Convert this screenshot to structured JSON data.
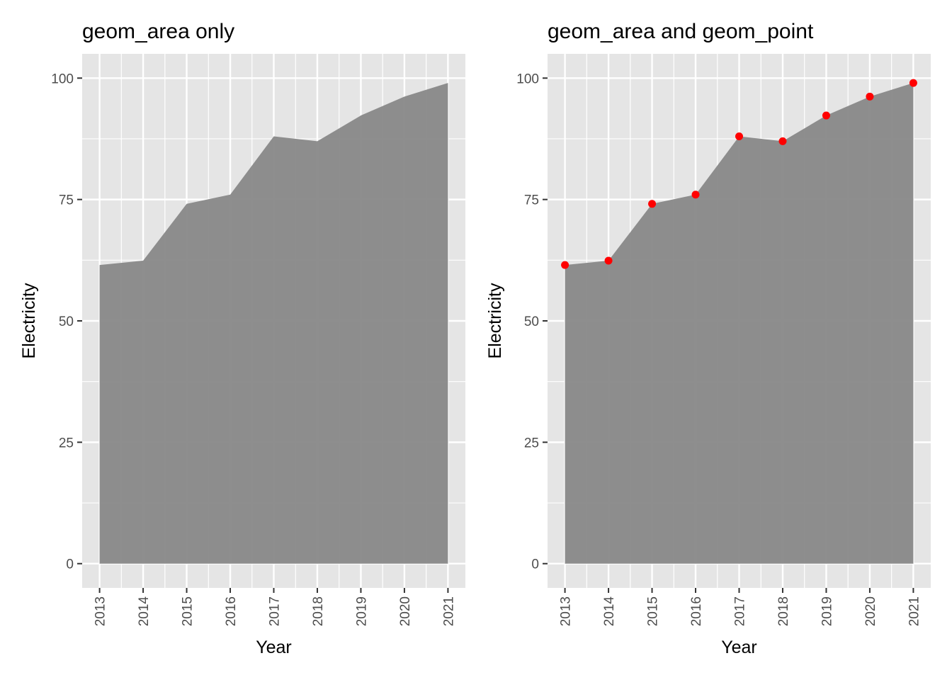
{
  "chart_data": [
    {
      "type": "area",
      "title": "geom_area only",
      "xlabel": "Year",
      "ylabel": "Electricity",
      "x": [
        2013,
        2014,
        2015,
        2016,
        2017,
        2018,
        2019,
        2020,
        2021
      ],
      "series": [
        {
          "values": [
            61.5,
            62.4,
            74.1,
            76.0,
            88.0,
            87.0,
            92.3,
            96.2,
            99.0
          ]
        }
      ],
      "ylim": [
        0,
        100
      ],
      "yticks": [
        0,
        25,
        50,
        75,
        100
      ],
      "grid": true,
      "points": false,
      "colors": {
        "panel": "#e5e5e5",
        "area": "#888888",
        "grid": "#ffffff"
      }
    },
    {
      "type": "area",
      "title": "geom_area and geom_point",
      "xlabel": "Year",
      "ylabel": "Electricity",
      "x": [
        2013,
        2014,
        2015,
        2016,
        2017,
        2018,
        2019,
        2020,
        2021
      ],
      "series": [
        {
          "values": [
            61.5,
            62.4,
            74.1,
            76.0,
            88.0,
            87.0,
            92.3,
            96.2,
            99.0
          ]
        }
      ],
      "ylim": [
        0,
        100
      ],
      "yticks": [
        0,
        25,
        50,
        75,
        100
      ],
      "grid": true,
      "points": true,
      "colors": {
        "panel": "#e5e5e5",
        "area": "#888888",
        "grid": "#ffffff",
        "point": "#ff0000"
      }
    }
  ]
}
